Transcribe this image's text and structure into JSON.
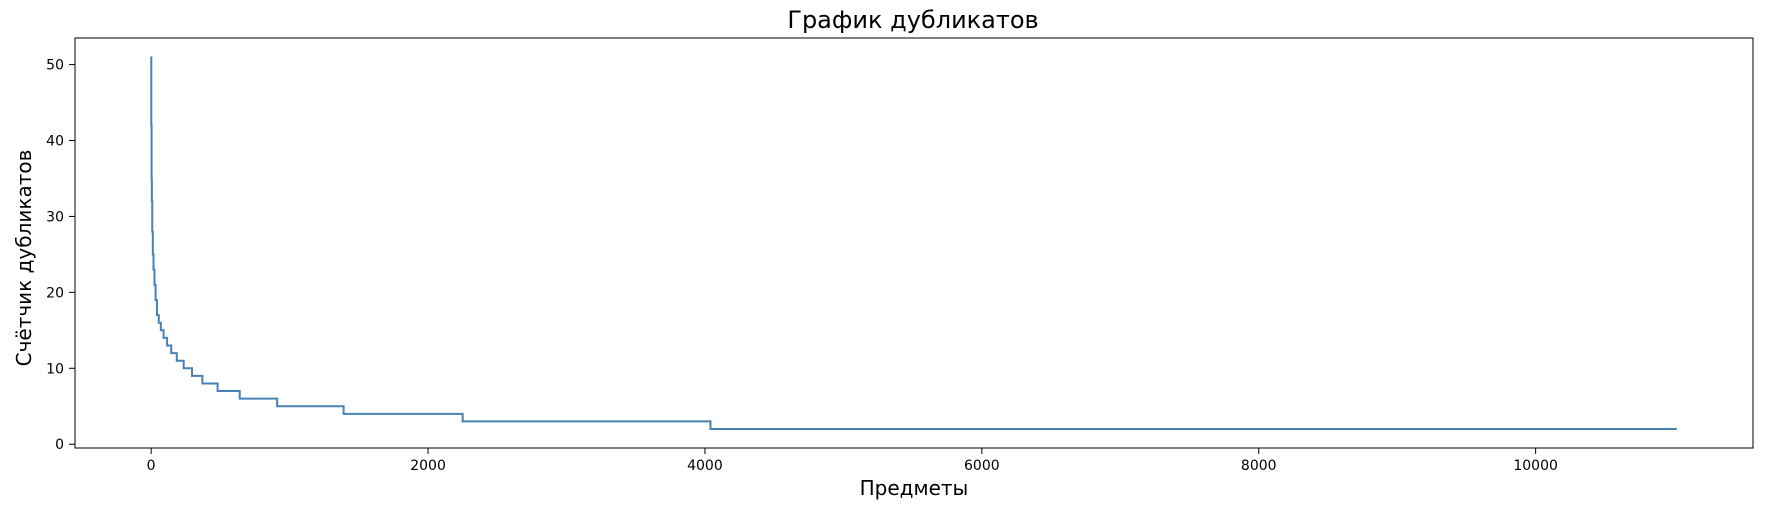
{
  "chart_data": {
    "type": "line",
    "title": "График дубликатов",
    "xlabel": "Предметы",
    "ylabel": "Счётчик дубликатов",
    "xlim": [
      -550,
      11570
    ],
    "ylim": [
      -0.5,
      53.5
    ],
    "xticks": [
      0,
      2000,
      4000,
      6000,
      8000,
      10000
    ],
    "yticks": [
      0,
      10,
      20,
      30,
      40,
      50
    ],
    "grid": false,
    "line_color": "#4682b4",
    "series": [
      {
        "step": "post",
        "x": [
          0,
          1,
          3,
          5,
          8,
          12,
          17,
          24,
          32,
          42,
          55,
          70,
          90,
          115,
          145,
          185,
          235,
          295,
          370,
          480,
          640,
          910,
          1390,
          2250,
          4040,
          11020
        ],
        "y": [
          51,
          42,
          35,
          32,
          28,
          25,
          23,
          21,
          19,
          17,
          16,
          15,
          14,
          13,
          12,
          11,
          10,
          9,
          8,
          7,
          6,
          5,
          4,
          3,
          2,
          2
        ]
      }
    ]
  }
}
